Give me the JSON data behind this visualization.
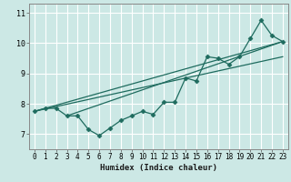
{
  "xlabel": "Humidex (Indice chaleur)",
  "bg_color": "#cce8e5",
  "line_color": "#1e6b5e",
  "grid_color": "#ffffff",
  "xlim": [
    -0.5,
    23.5
  ],
  "ylim": [
    6.5,
    11.3
  ],
  "xticks": [
    0,
    1,
    2,
    3,
    4,
    5,
    6,
    7,
    8,
    9,
    10,
    11,
    12,
    13,
    14,
    15,
    16,
    17,
    18,
    19,
    20,
    21,
    22,
    23
  ],
  "yticks": [
    7,
    8,
    9,
    10,
    11
  ],
  "main_line_x": [
    0,
    1,
    2,
    3,
    4,
    5,
    6,
    7,
    8,
    9,
    10,
    11,
    12,
    13,
    14,
    15,
    16,
    17,
    18,
    19,
    20,
    21,
    22,
    23
  ],
  "main_line_y": [
    7.75,
    7.85,
    7.85,
    7.6,
    7.6,
    7.15,
    6.95,
    7.2,
    7.45,
    7.6,
    7.75,
    7.65,
    8.05,
    8.05,
    8.85,
    8.75,
    9.55,
    9.5,
    9.3,
    9.55,
    10.15,
    10.75,
    10.25,
    10.05
  ],
  "trend_line1_x": [
    0,
    23
  ],
  "trend_line1_y": [
    7.75,
    10.05
  ],
  "trend_line2_x": [
    0,
    23
  ],
  "trend_line2_y": [
    7.75,
    9.55
  ],
  "trend_line3_x": [
    3,
    23
  ],
  "trend_line3_y": [
    7.6,
    10.05
  ]
}
